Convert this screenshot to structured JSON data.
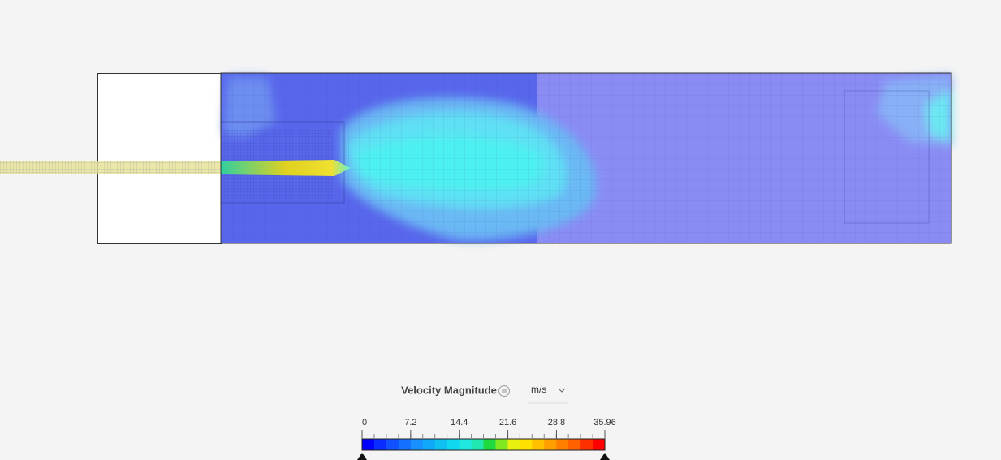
{
  "legend": {
    "title": "Velocity Magnitude",
    "unit": "m/s",
    "ticks": [
      0,
      7.2,
      14.4,
      21.6,
      28.8,
      35.96
    ]
  }
}
